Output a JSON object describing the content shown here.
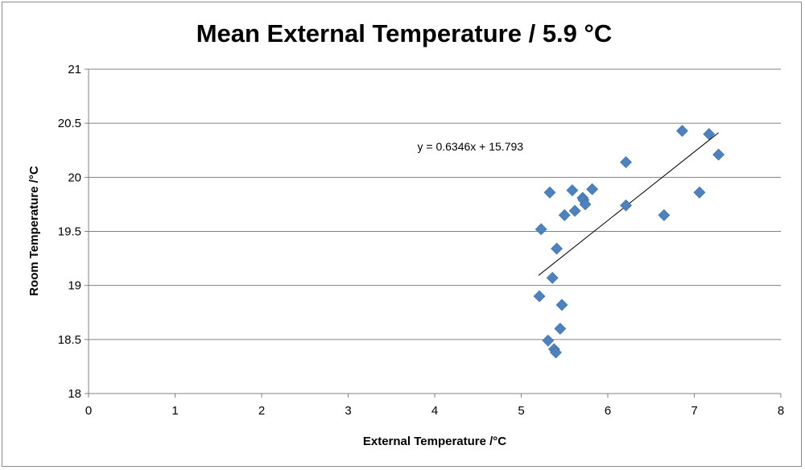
{
  "chart_data": {
    "type": "scatter",
    "title": "Mean External Temperature / 5.9 °C",
    "xlabel": "External Temperature /°C",
    "ylabel": "Room Temperature /°C",
    "xlim": [
      0,
      8
    ],
    "ylim": [
      18,
      21
    ],
    "x_ticks": [
      0,
      1,
      2,
      3,
      4,
      5,
      6,
      7,
      8
    ],
    "y_ticks": [
      18,
      18.5,
      19,
      19.5,
      20,
      20.5,
      21
    ],
    "x_tick_labels": [
      "0",
      "1",
      "2",
      "3",
      "4",
      "5",
      "6",
      "7",
      "8"
    ],
    "y_tick_labels": [
      "18",
      "18.5",
      "19",
      "19.5",
      "20",
      "20.5",
      "21"
    ],
    "grid": {
      "horizontal": true,
      "vertical": false
    },
    "legend": "none",
    "marker": "diamond",
    "marker_color": "#4f81bd",
    "series": [
      {
        "points": [
          {
            "x": 5.21,
            "y": 18.9
          },
          {
            "x": 5.23,
            "y": 19.52
          },
          {
            "x": 5.31,
            "y": 18.49
          },
          {
            "x": 5.33,
            "y": 19.86
          },
          {
            "x": 5.36,
            "y": 19.07
          },
          {
            "x": 5.38,
            "y": 18.41
          },
          {
            "x": 5.4,
            "y": 18.38
          },
          {
            "x": 5.41,
            "y": 19.34
          },
          {
            "x": 5.45,
            "y": 18.6
          },
          {
            "x": 5.47,
            "y": 18.82
          },
          {
            "x": 5.5,
            "y": 19.65
          },
          {
            "x": 5.59,
            "y": 19.88
          },
          {
            "x": 5.62,
            "y": 19.69
          },
          {
            "x": 5.71,
            "y": 19.81
          },
          {
            "x": 5.72,
            "y": 19.79
          },
          {
            "x": 5.74,
            "y": 19.75
          },
          {
            "x": 5.82,
            "y": 19.89
          },
          {
            "x": 6.21,
            "y": 20.14
          },
          {
            "x": 6.21,
            "y": 19.74
          },
          {
            "x": 6.65,
            "y": 19.65
          },
          {
            "x": 6.86,
            "y": 20.43
          },
          {
            "x": 7.06,
            "y": 19.86
          },
          {
            "x": 7.17,
            "y": 20.4
          },
          {
            "x": 7.28,
            "y": 20.21
          }
        ]
      }
    ],
    "trendline": {
      "slope": 0.6346,
      "intercept": 15.793,
      "x_range": [
        5.2,
        7.28
      ],
      "label": "y = 0.6346x + 15.793",
      "label_anchor": {
        "x": 3.8,
        "y": 20.25
      },
      "color": "#000000"
    },
    "colors": {
      "grid": "#808080",
      "axis": "#808080",
      "frame": "#8c8c8c"
    }
  }
}
